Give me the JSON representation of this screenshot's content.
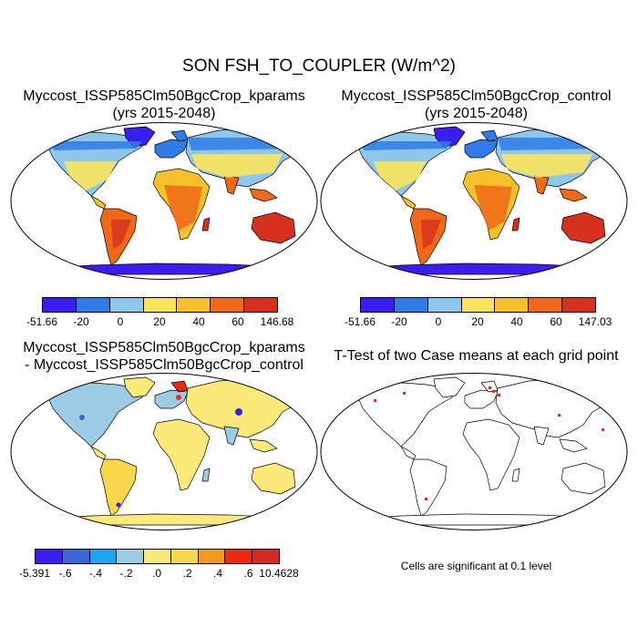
{
  "figure": {
    "title": "SON FSH_TO_COUPLER (W/m^2)"
  },
  "panels": [
    {
      "id": "kparams",
      "title_line1": "Myccost_ISSP585Clm50BgcCrop_kparams",
      "title_line2": "(yrs 2015-2048)",
      "colorbar": {
        "labels": [
          "-51.66",
          "-20",
          "0",
          "20",
          "40",
          "60",
          "146.68"
        ],
        "colors": [
          "#3a1df0",
          "#2f7be8",
          "#8dc8ec",
          "#fbe35a",
          "#f6c02a",
          "#f06818",
          "#d7301f"
        ]
      }
    },
    {
      "id": "control",
      "title_line1": "Myccost_ISSP585Clm50BgcCrop_control",
      "title_line2": "(yrs 2015-2048)",
      "colorbar": {
        "labels": [
          "-51.66",
          "-20",
          "0",
          "20",
          "40",
          "60",
          "147.03"
        ],
        "colors": [
          "#3a1df0",
          "#2f7be8",
          "#8dc8ec",
          "#fbe35a",
          "#f6c02a",
          "#f06818",
          "#d7301f"
        ]
      }
    },
    {
      "id": "difference",
      "title_line1": "Myccost_ISSP585Clm50BgcCrop_kparams",
      "title_line2": "- Myccost_ISSP585Clm50BgcCrop_control",
      "colorbar": {
        "labels": [
          "-5.391",
          "-.6",
          "-.4",
          "-.2",
          ".0",
          ".2",
          ".4",
          ".6",
          "10.4628"
        ],
        "colors": [
          "#3a1df0",
          "#3b65d8",
          "#1aa6f0",
          "#9ccbe6",
          "#fbe97a",
          "#f8d84a",
          "#f39a1c",
          "#ee2a10",
          "#d42a20"
        ]
      }
    },
    {
      "id": "ttest",
      "title_line1": "T-Test of two Case means at each grid point",
      "note": "Cells are significant at 0.1 level"
    }
  ]
}
